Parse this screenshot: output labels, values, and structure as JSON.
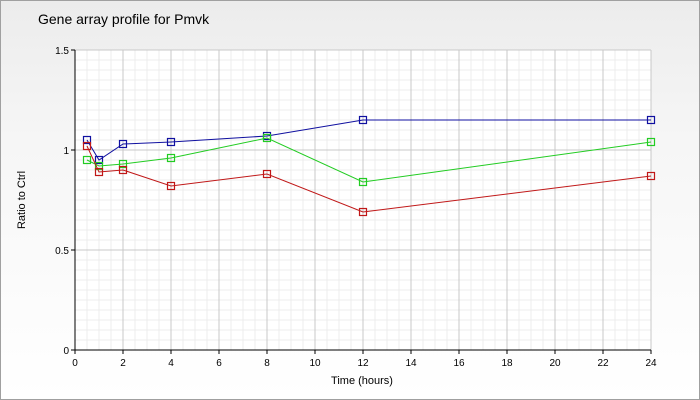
{
  "chart_data": {
    "type": "line",
    "title": "Gene array profile for Pmvk",
    "xlabel": "Time (hours)",
    "ylabel": "Ratio to Ctrl",
    "xlim": [
      0,
      24
    ],
    "ylim": [
      0,
      1.5
    ],
    "x_ticks": [
      "0",
      "2",
      "4",
      "6",
      "8",
      "10",
      "12",
      "14",
      "16",
      "18",
      "20",
      "22",
      "24"
    ],
    "y_ticks": [
      "0",
      "0.5",
      "1",
      "1.5"
    ],
    "grid": true,
    "marker": "open-square",
    "series": [
      {
        "color": "#1010a0",
        "x": [
          0.5,
          1,
          2,
          4,
          8,
          12,
          24
        ],
        "y": [
          1.05,
          0.95,
          1.03,
          1.04,
          1.07,
          1.15,
          1.15
        ]
      },
      {
        "color": "#22cc22",
        "x": [
          0.5,
          1,
          2,
          4,
          8,
          12,
          24
        ],
        "y": [
          0.95,
          0.92,
          0.93,
          0.96,
          1.06,
          0.84,
          1.04
        ]
      },
      {
        "color": "#c01818",
        "x": [
          0.5,
          1,
          2,
          4,
          8,
          12,
          24
        ],
        "y": [
          1.02,
          0.89,
          0.9,
          0.82,
          0.88,
          0.69,
          0.87
        ]
      }
    ]
  }
}
